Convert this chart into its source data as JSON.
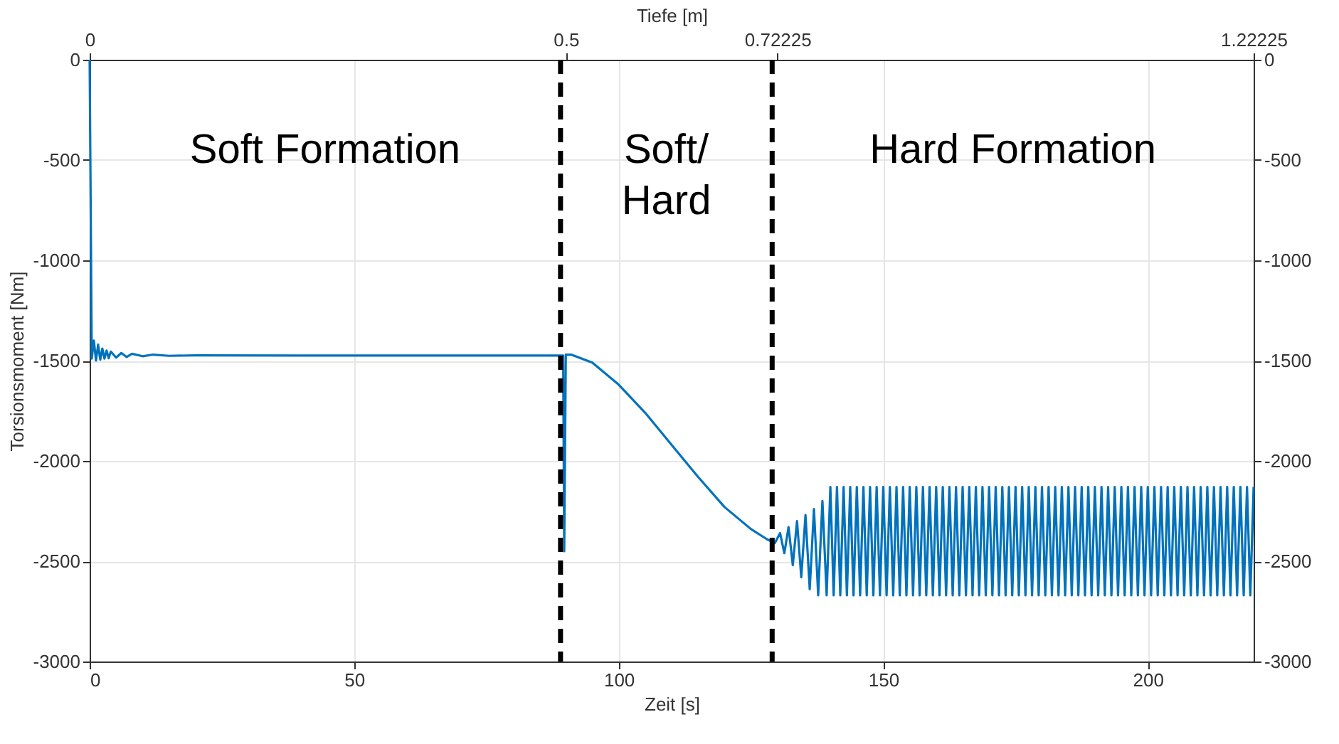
{
  "chart_data": {
    "type": "line",
    "xlabel": "Zeit [s]",
    "ylabel": "Torsionsmoment [Nm]",
    "x2label": "Tiefe [m]",
    "xlim": [
      0,
      220
    ],
    "xticks": [
      0,
      50,
      100,
      150,
      200
    ],
    "x2lim": [
      0,
      1.22225
    ],
    "x2ticks": [
      0,
      0.5,
      0.72225,
      1.22225
    ],
    "ylim": [
      -3000,
      0
    ],
    "yticks": [
      -3000,
      -2500,
      -2000,
      -1500,
      -1000,
      -500,
      0
    ],
    "y2lim": [
      -3000,
      0
    ],
    "y2ticks": [
      -3000,
      -2500,
      -2000,
      -1500,
      -1000,
      -500,
      0
    ],
    "grid": true,
    "line_style": "solid",
    "marker": "none",
    "ref_lines": [
      {
        "axis": "x",
        "value": 89,
        "color": "#000000",
        "line_style": "dashed"
      },
      {
        "axis": "x",
        "value": 129,
        "color": "#000000",
        "line_style": "dashed"
      }
    ],
    "annotations": [
      "Soft Formation",
      "Soft/\nHard",
      "Hard Formation"
    ],
    "series": [
      {
        "color": "#0072bd",
        "x": [
          0,
          0.4,
          0.8,
          1.2,
          1.6,
          2.0,
          2.4,
          2.8,
          3.2,
          3.6,
          4.0,
          5,
          6,
          7,
          8,
          10,
          12,
          15,
          20,
          40,
          60,
          80,
          88.5,
          89.5,
          89.7,
          90,
          91,
          95,
          100,
          105,
          110,
          115,
          120,
          125,
          128,
          129.5,
          130.5,
          131.3,
          132.1,
          132.9,
          133.7,
          134.5,
          135.3,
          136.1,
          136.9,
          137.7,
          138.5,
          139.3,
          140,
          140.625,
          141.25,
          141.875,
          142.5,
          143.125,
          143.75,
          144.375,
          145,
          145.625,
          146.25,
          146.875,
          147.5,
          148.125,
          148.75,
          149.375,
          150,
          150.625,
          151.25,
          151.875,
          152.5,
          153.125,
          153.75,
          154.375,
          155,
          155.625,
          156.25,
          156.875,
          157.5,
          158.125,
          158.75,
          159.375,
          160,
          160.625,
          161.25,
          161.875,
          162.5,
          163.125,
          163.75,
          164.375,
          165,
          165.625,
          166.25,
          166.875,
          167.5,
          168.125,
          168.75,
          169.375,
          170,
          170.625,
          171.25,
          171.875,
          172.5,
          173.125,
          173.75,
          174.375,
          175,
          175.625,
          176.25,
          176.875,
          177.5,
          178.125,
          178.75,
          179.375,
          180,
          180.625,
          181.25,
          181.875,
          182.5,
          183.125,
          183.75,
          184.375,
          185,
          185.625,
          186.25,
          186.875,
          187.5,
          188.125,
          188.75,
          189.375,
          190,
          190.625,
          191.25,
          191.875,
          192.5,
          193.125,
          193.75,
          194.375,
          195,
          195.625,
          196.25,
          196.875,
          197.5,
          198.125,
          198.75,
          199.375,
          200,
          200.625,
          201.25,
          201.875,
          202.5,
          203.125,
          203.75,
          204.375,
          205,
          205.625,
          206.25,
          206.875,
          207.5,
          208.125,
          208.75,
          209.375,
          210,
          210.625,
          211.25,
          211.875,
          212.5,
          213.125,
          213.75,
          214.375,
          215,
          215.625,
          216.25,
          216.875,
          217.5,
          218.125,
          218.75,
          219.375,
          220
        ],
        "values": [
          0,
          -1490,
          -1400,
          -1500,
          -1420,
          -1495,
          -1440,
          -1490,
          -1450,
          -1488,
          -1455,
          -1485,
          -1462,
          -1482,
          -1466,
          -1478,
          -1470,
          -1476,
          -1474,
          -1475,
          -1475,
          -1475,
          -1475,
          -1475,
          -2450,
          -1470,
          -1470,
          -1510,
          -1620,
          -1760,
          -1920,
          -2080,
          -2230,
          -2340,
          -2390,
          -2410,
          -2360,
          -2460,
          -2330,
          -2520,
          -2300,
          -2580,
          -2270,
          -2640,
          -2240,
          -2670,
          -2200,
          -2670,
          -2130,
          -2670,
          -2130,
          -2670,
          -2130,
          -2670,
          -2130,
          -2670,
          -2130,
          -2670,
          -2130,
          -2670,
          -2130,
          -2670,
          -2130,
          -2670,
          -2130,
          -2670,
          -2130,
          -2670,
          -2130,
          -2670,
          -2130,
          -2670,
          -2130,
          -2670,
          -2130,
          -2670,
          -2130,
          -2670,
          -2130,
          -2670,
          -2130,
          -2670,
          -2130,
          -2670,
          -2130,
          -2670,
          -2130,
          -2670,
          -2130,
          -2670,
          -2130,
          -2670,
          -2130,
          -2670,
          -2130,
          -2670,
          -2130,
          -2670,
          -2130,
          -2670,
          -2130,
          -2670,
          -2130,
          -2670,
          -2130,
          -2670,
          -2130,
          -2670,
          -2130,
          -2670,
          -2130,
          -2670,
          -2130,
          -2670,
          -2130,
          -2670,
          -2130,
          -2670,
          -2130,
          -2670,
          -2130,
          -2670,
          -2130,
          -2670,
          -2130,
          -2670,
          -2130,
          -2670,
          -2130,
          -2670,
          -2130,
          -2670,
          -2130,
          -2670,
          -2130,
          -2670,
          -2130,
          -2670,
          -2130,
          -2670,
          -2130,
          -2670,
          -2130,
          -2670,
          -2130,
          -2670,
          -2130,
          -2670,
          -2130,
          -2670,
          -2130,
          -2670,
          -2130,
          -2670,
          -2130,
          -2670,
          -2130,
          -2670,
          -2130,
          -2670,
          -2130,
          -2670,
          -2130,
          -2670,
          -2130,
          -2670,
          -2130,
          -2670,
          -2130,
          -2670,
          -2130,
          -2670,
          -2130,
          -2670,
          -2130,
          -2670,
          -2130
        ]
      }
    ]
  }
}
